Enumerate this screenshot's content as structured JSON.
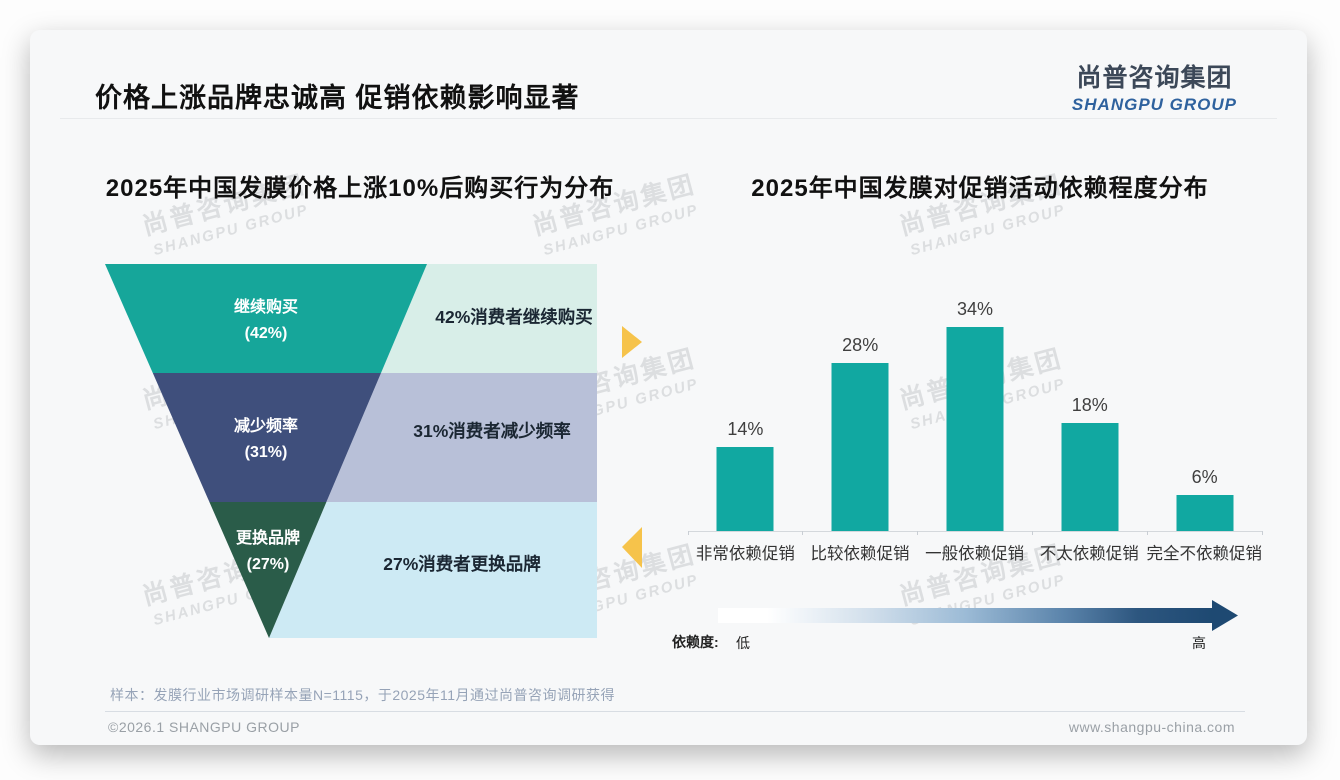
{
  "page": {
    "title": "价格上涨品牌忠诚高 促销依赖影响显著",
    "logo": {
      "cn": "尚普咨询集团",
      "en": "SHANGPU GROUP",
      "cn_color": "#3c4858",
      "en_color": "#2f629e"
    },
    "watermark": {
      "cn": "尚普咨询集团",
      "en": "SHANGPU GROUP"
    },
    "footnote": "样本：发膜行业市场调研样本量N=1115，于2025年11月通过尚普咨询调研获得",
    "footer_left": "©2026.1 SHANGPU GROUP",
    "footer_right": "www.shangpu-china.com"
  },
  "decorations": {
    "accent_arrow_color": "#f6c34b"
  },
  "chart_data": [
    {
      "type": "funnel",
      "title": "2025年中国发膜价格上涨10%后购买行为分布",
      "categories": [
        "继续购买",
        "减少频率",
        "更换品牌"
      ],
      "values": [
        42,
        31,
        27
      ],
      "stage_labels": [
        "继续购买",
        "减少频率",
        "更换品牌"
      ],
      "stage_value_labels": [
        "(42%)",
        "(31%)",
        "(27%)"
      ],
      "annotations": [
        "42%消费者继续购买",
        "31%消费者减少频率",
        "27%消费者更换品牌"
      ],
      "colors": {
        "stage": [
          "#16a69a",
          "#3f4f7c",
          "#2a5c49"
        ],
        "panel": [
          "#d8eee8",
          "#b8c0d8",
          "#cdeaf4"
        ]
      }
    },
    {
      "type": "bar",
      "title": "2025年中国发膜对促销活动依赖程度分布",
      "categories": [
        "非常依赖促销",
        "比较依赖促销",
        "一般依赖促销",
        "不太依赖促销",
        "完全不依赖促销"
      ],
      "values": [
        14,
        28,
        34,
        18,
        6
      ],
      "value_labels": [
        "14%",
        "28%",
        "34%",
        "18%",
        "6%"
      ],
      "bar_color": "#11a8a1",
      "ylim": [
        0,
        38
      ],
      "grid": "off",
      "dependency_axis": {
        "legend_label": "依赖度:",
        "low_label": "低",
        "high_label": "高",
        "gradient": [
          "#ffffff",
          "#1e4972"
        ]
      }
    }
  ]
}
